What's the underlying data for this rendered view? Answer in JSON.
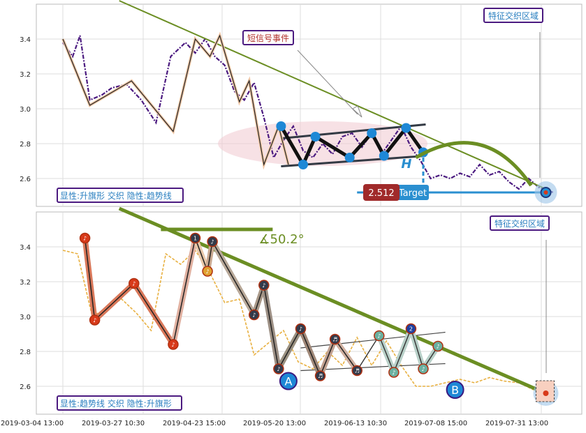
{
  "chart_data": [
    {
      "type": "line",
      "panel": "top",
      "ylim": [
        2.44,
        3.6
      ],
      "yticks": [
        "2.6",
        "2.8",
        "3.0",
        "3.2",
        "3.4"
      ],
      "ytick_values": [
        2.6,
        2.8,
        3.0,
        3.2,
        3.4
      ],
      "price_series": {
        "name": "",
        "color": "#4b1a80",
        "t": [
          0.0,
          0.02,
          0.035,
          0.055,
          0.08,
          0.1,
          0.13,
          0.16,
          0.19,
          0.22,
          0.25,
          0.27,
          0.29,
          0.31,
          0.33,
          0.35,
          0.37,
          0.39,
          0.41,
          0.43,
          0.45,
          0.47,
          0.49,
          0.51,
          0.53,
          0.55,
          0.57,
          0.59,
          0.61,
          0.63,
          0.65,
          0.67,
          0.69,
          0.71,
          0.73,
          0.75,
          0.77,
          0.79,
          0.81,
          0.83,
          0.85,
          0.87,
          0.89,
          0.91,
          0.93,
          0.95,
          0.97,
          1.0
        ],
        "values": [
          3.38,
          3.3,
          3.42,
          3.05,
          3.08,
          3.12,
          3.14,
          3.05,
          2.92,
          3.3,
          3.38,
          3.32,
          3.4,
          3.3,
          3.25,
          3.1,
          3.05,
          3.15,
          2.95,
          2.72,
          2.82,
          2.9,
          2.76,
          2.72,
          2.8,
          2.74,
          2.84,
          2.86,
          2.78,
          2.86,
          2.74,
          2.82,
          2.9,
          2.78,
          2.7,
          2.6,
          2.62,
          2.6,
          2.63,
          2.61,
          2.68,
          2.62,
          2.64,
          2.58,
          2.54,
          2.6,
          2.55,
          2.52
        ]
      },
      "wave_points": {
        "t": [
          0.0,
          0.055,
          0.14,
          0.225,
          0.27,
          0.3,
          0.32,
          0.36,
          0.38,
          0.41,
          0.44,
          0.46
        ],
        "values": [
          3.4,
          3.02,
          3.16,
          2.87,
          3.4,
          3.3,
          3.42,
          3.04,
          3.16,
          2.68,
          2.9,
          2.68
        ]
      },
      "pattern_points": {
        "t": [
          0.445,
          0.49,
          0.515,
          0.585,
          0.63,
          0.655,
          0.7,
          0.735
        ],
        "values": [
          2.9,
          2.68,
          2.84,
          2.72,
          2.86,
          2.73,
          2.89,
          2.75
        ]
      },
      "trendline": {
        "t": [
          0.115,
          0.985
        ],
        "values": [
          3.62,
          2.54
        ]
      },
      "flag_upper": {
        "t": [
          0.445,
          0.74
        ],
        "values": [
          2.83,
          2.91
        ]
      },
      "flag_lower": {
        "t": [
          0.445,
          0.74
        ],
        "values": [
          2.67,
          2.73
        ]
      },
      "target_value": "2.512",
      "target_label": "Target",
      "height_marker": "H",
      "callout_short": "短信号事件",
      "callout_zone": "特征交织区域",
      "legend": "显性:升旗形 交织 隐性:趋势线"
    },
    {
      "type": "line",
      "panel": "bottom",
      "ylim": [
        2.44,
        3.6
      ],
      "yticks": [
        "2.6",
        "2.8",
        "3.0",
        "3.2",
        "3.4"
      ],
      "ytick_values": [
        2.6,
        2.8,
        3.0,
        3.2,
        3.4
      ],
      "price_series": {
        "name": "",
        "color": "#e8b040",
        "t": [
          0.0,
          0.03,
          0.06,
          0.09,
          0.12,
          0.15,
          0.18,
          0.21,
          0.24,
          0.27,
          0.3,
          0.33,
          0.36,
          0.39,
          0.42,
          0.45,
          0.48,
          0.51,
          0.54,
          0.57,
          0.6,
          0.63,
          0.66,
          0.69,
          0.72,
          0.75,
          0.78,
          0.81,
          0.84,
          0.87,
          0.9,
          0.93,
          0.96,
          1.0
        ],
        "values": [
          3.38,
          3.36,
          3.0,
          3.05,
          3.1,
          3.02,
          2.92,
          3.36,
          3.3,
          3.38,
          3.25,
          3.08,
          3.1,
          2.78,
          2.85,
          2.92,
          2.74,
          2.7,
          2.8,
          2.72,
          2.88,
          2.72,
          2.86,
          2.72,
          2.6,
          2.6,
          2.62,
          2.64,
          2.62,
          2.65,
          2.63,
          2.62,
          2.58,
          2.57
        ]
      },
      "wave_points": {
        "t": [
          0.045,
          0.065,
          0.145,
          0.225,
          0.27,
          0.295,
          0.305,
          0.39,
          0.41,
          0.44,
          0.485,
          0.525,
          0.555,
          0.6
        ],
        "labels": [
          "♪",
          "♪",
          "♪",
          "♪",
          "1",
          "♪",
          "♪",
          "♪",
          "♪",
          "♪",
          "♪",
          "♬",
          "♬",
          "♬"
        ],
        "values": [
          3.45,
          2.98,
          3.19,
          2.84,
          3.45,
          3.26,
          3.43,
          3.01,
          3.18,
          2.7,
          2.93,
          2.66,
          2.87,
          2.69
        ]
      },
      "pattern_points": {
        "t": [
          0.645,
          0.675,
          0.71,
          0.735,
          0.765
        ],
        "labels": [
          "♪",
          "♪",
          "2",
          "♪",
          "♪"
        ],
        "values": [
          2.89,
          2.68,
          2.93,
          2.7,
          2.83
        ]
      },
      "trendline": {
        "t": [
          0.115,
          0.985
        ],
        "values": [
          3.62,
          2.56
        ]
      },
      "flag_upper": {
        "t": [
          0.485,
          0.78
        ],
        "values": [
          2.82,
          2.91
        ]
      },
      "flag_lower": {
        "t": [
          0.485,
          0.78
        ],
        "values": [
          2.69,
          2.73
        ]
      },
      "wave_labels": [
        {
          "text": "A",
          "t": 0.46,
          "value": 2.63
        },
        {
          "text": "B",
          "t": 0.8,
          "value": 2.58
        }
      ],
      "angle_label": "∡50.2°",
      "callout_zone": "特征交织区域",
      "legend": "显性:趋势线 交织 隐性:升旗形"
    }
  ],
  "x_axis": {
    "ticks": [
      "2019-03-04 13:00",
      "2019-03-27 10:30",
      "2019-04-23 15:00",
      "2019-05-20 13:00",
      "2019-06-13 10:30",
      "2019-07-08 15:00",
      "2019-07-31 13:00"
    ],
    "tick_t": [
      0.0,
      0.14,
      0.28,
      0.42,
      0.56,
      0.7,
      0.84
    ]
  },
  "colors": {
    "trend": "#6b8e23",
    "wave_dark": "#222222",
    "pattern_point": "#1e88d6",
    "callout_border": "#4b1a80",
    "target_badge": "#a02a2a",
    "target_bar": "#2a8fd0",
    "bottom_marker_red": "#d83a1a",
    "bottom_marker_blue": "#1d3f9f",
    "zone_ellipse": "#f0c8d0"
  }
}
